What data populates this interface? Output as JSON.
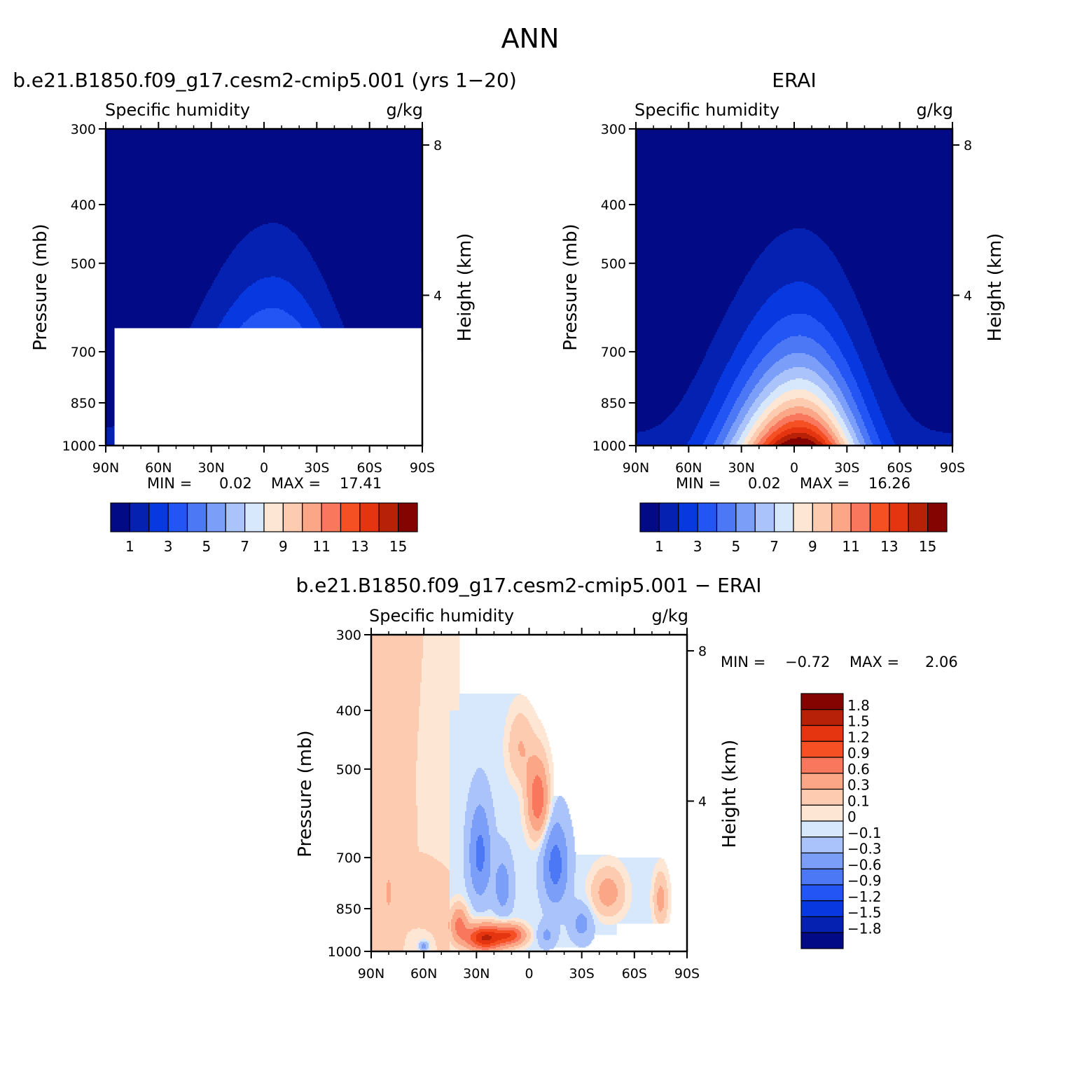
{
  "figure_title": "ANN",
  "chart_data": [
    {
      "type": "heatmap",
      "title": "b.e21.B1850.f09_g17.cesm2-cmip5.001 (yrs 1−20)",
      "subtitle_left": "Specific humidity",
      "subtitle_right": "g/kg",
      "ylabel": "Pressure (mb)",
      "y2label": "Height (km)",
      "x_ticks": [
        "90N",
        "60N",
        "30N",
        "0",
        "30S",
        "60S",
        "90S"
      ],
      "y_ticks": [
        "300",
        "400",
        "500",
        "700",
        "850",
        "1000"
      ],
      "y2_ticks": [
        "8",
        "4"
      ],
      "min_label": "MIN =",
      "min_value": "0.02",
      "max_label": "MAX =",
      "max_value": "17.41",
      "colorbar_labels": [
        "1",
        "3",
        "5",
        "7",
        "9",
        "11",
        "13",
        "15"
      ],
      "peak": 17.41,
      "peak_lat": -5,
      "floor_hpa": 1000,
      "masked": true,
      "levels": [
        1,
        2,
        3,
        4,
        5,
        6,
        7,
        8,
        9,
        10,
        11,
        12,
        13,
        14,
        15
      ]
    },
    {
      "type": "heatmap",
      "title": "ERAI",
      "subtitle_left": "Specific humidity",
      "subtitle_right": "g/kg",
      "ylabel": "Pressure (mb)",
      "y2label": "Height (km)",
      "x_ticks": [
        "90N",
        "60N",
        "30N",
        "0",
        "30S",
        "60S",
        "90S"
      ],
      "y_ticks": [
        "300",
        "400",
        "500",
        "700",
        "850",
        "1000"
      ],
      "y2_ticks": [
        "8",
        "4"
      ],
      "min_label": "MIN =",
      "min_value": "0.02",
      "max_label": "MAX =",
      "max_value": "16.26",
      "colorbar_labels": [
        "1",
        "3",
        "5",
        "7",
        "9",
        "11",
        "13",
        "15"
      ],
      "peak": 16.26,
      "peak_lat": -3,
      "floor_hpa": 1000,
      "masked": false,
      "levels": [
        1,
        2,
        3,
        4,
        5,
        6,
        7,
        8,
        9,
        10,
        11,
        12,
        13,
        14,
        15
      ]
    },
    {
      "type": "heatmap",
      "title": "b.e21.B1850.f09_g17.cesm2-cmip5.001 − ERAI",
      "subtitle_left": "Specific humidity",
      "subtitle_right": "g/kg",
      "ylabel": "Pressure (mb)",
      "y2label": "Height (km)",
      "x_ticks": [
        "90N",
        "60N",
        "30N",
        "0",
        "30S",
        "60S",
        "90S"
      ],
      "y_ticks": [
        "300",
        "400",
        "500",
        "700",
        "850",
        "1000"
      ],
      "y2_ticks": [
        "8",
        "4"
      ],
      "min_label": "MIN =",
      "min_value": "−0.72",
      "max_label": "MAX =",
      "max_value": "2.06",
      "colorbar_labels": [
        "1.8",
        "1.5",
        "1.2",
        "0.9",
        "0.6",
        "0.3",
        "0.1",
        "0",
        "−0.1",
        "−0.3",
        "−0.6",
        "−0.9",
        "−1.2",
        "−1.5",
        "−1.8"
      ],
      "levels": [
        -1.8,
        -1.5,
        -1.2,
        -0.9,
        -0.6,
        -0.3,
        -0.1,
        0,
        0.1,
        0.3,
        0.6,
        0.9,
        1.2,
        1.5,
        1.8
      ],
      "anomalies": [
        {
          "lat": -5,
          "hpa": 560,
          "amp": 0.9,
          "slat": 6,
          "shpa": 80
        },
        {
          "lat": 5,
          "hpa": 460,
          "amp": 0.35,
          "slat": 7,
          "shpa": 60
        },
        {
          "lat": -15,
          "hpa": 720,
          "amp": -0.7,
          "slat": 7,
          "shpa": 110
        },
        {
          "lat": 28,
          "hpa": 690,
          "amp": -0.65,
          "slat": 6,
          "shpa": 120
        },
        {
          "lat": 15,
          "hpa": 780,
          "amp": -0.4,
          "slat": 5,
          "shpa": 90
        },
        {
          "lat": -45,
          "hpa": 800,
          "amp": 0.5,
          "slat": 9,
          "shpa": 70
        },
        {
          "lat": -75,
          "hpa": 820,
          "amp": 0.45,
          "slat": 4,
          "shpa": 80
        },
        {
          "lat": 80,
          "hpa": 800,
          "amp": 0.25,
          "slat": 3,
          "shpa": 80
        },
        {
          "lat": 25,
          "hpa": 950,
          "amp": 1.6,
          "slat": 11,
          "shpa": 45
        },
        {
          "lat": 10,
          "hpa": 940,
          "amp": 1.0,
          "slat": 8,
          "shpa": 35
        },
        {
          "lat": 40,
          "hpa": 900,
          "amp": 0.7,
          "slat": 5,
          "shpa": 60
        },
        {
          "lat": -10,
          "hpa": 940,
          "amp": -0.3,
          "slat": 5,
          "shpa": 40
        },
        {
          "lat": -30,
          "hpa": 900,
          "amp": -0.35,
          "slat": 6,
          "shpa": 60
        },
        {
          "lat": 60,
          "hpa": 980,
          "amp": -0.5,
          "slat": 3,
          "shpa": 20
        }
      ],
      "base": {
        "north": 0.1,
        "south": -0.05,
        "lat_split": 45,
        "top_hpa": 400
      }
    }
  ]
}
